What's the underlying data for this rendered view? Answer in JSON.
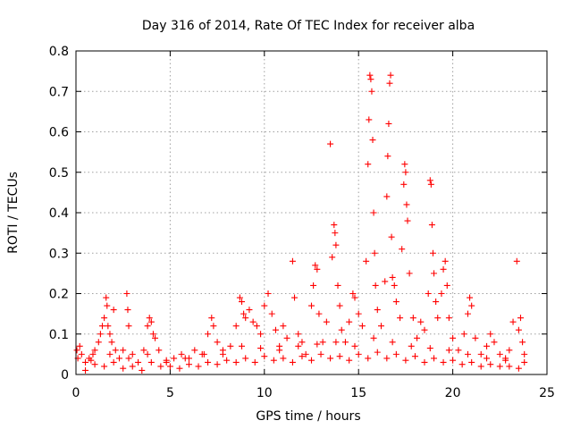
{
  "chart_data": {
    "type": "scatter",
    "title": "Day 316 of 2014, Rate Of TEC Index for receiver alba",
    "xlabel": "GPS time / hours",
    "ylabel": "ROTI / TECUs",
    "xlim": [
      0,
      25
    ],
    "ylim": [
      0,
      0.8
    ],
    "xticks": [
      "0",
      "5",
      "10",
      "15",
      "20",
      "25"
    ],
    "yticks": [
      "0",
      "0.1",
      "0.2",
      "0.3",
      "0.4",
      "0.5",
      "0.6",
      "0.7",
      "0.8"
    ],
    "grid": true,
    "marker": "plus",
    "color": "#ff0000",
    "series": [
      {
        "name": "ROTI",
        "points": [
          [
            0.05,
            0.06
          ],
          [
            0.1,
            0.04
          ],
          [
            0.2,
            0.07
          ],
          [
            0.3,
            0.05
          ],
          [
            0.5,
            0.03
          ],
          [
            0.7,
            0.04
          ],
          [
            0.9,
            0.05
          ],
          [
            1.0,
            0.06
          ],
          [
            1.2,
            0.08
          ],
          [
            1.3,
            0.1
          ],
          [
            1.4,
            0.12
          ],
          [
            1.5,
            0.14
          ],
          [
            1.6,
            0.19
          ],
          [
            1.65,
            0.17
          ],
          [
            1.7,
            0.12
          ],
          [
            1.8,
            0.1
          ],
          [
            1.9,
            0.08
          ],
          [
            2.0,
            0.16
          ],
          [
            2.1,
            0.06
          ],
          [
            2.3,
            0.04
          ],
          [
            2.5,
            0.06
          ],
          [
            2.7,
            0.2
          ],
          [
            2.75,
            0.16
          ],
          [
            2.8,
            0.12
          ],
          [
            3.0,
            0.05
          ],
          [
            3.3,
            0.03
          ],
          [
            3.6,
            0.06
          ],
          [
            3.8,
            0.12
          ],
          [
            3.9,
            0.14
          ],
          [
            4.0,
            0.13
          ],
          [
            4.1,
            0.1
          ],
          [
            4.2,
            0.09
          ],
          [
            4.4,
            0.06
          ],
          [
            4.8,
            0.03
          ],
          [
            5.2,
            0.04
          ],
          [
            5.6,
            0.05
          ],
          [
            6.0,
            0.04
          ],
          [
            6.3,
            0.06
          ],
          [
            6.7,
            0.05
          ],
          [
            7.0,
            0.1
          ],
          [
            7.2,
            0.14
          ],
          [
            7.3,
            0.12
          ],
          [
            7.5,
            0.08
          ],
          [
            7.8,
            0.05
          ],
          [
            8.2,
            0.07
          ],
          [
            8.5,
            0.12
          ],
          [
            8.7,
            0.19
          ],
          [
            8.8,
            0.18
          ],
          [
            8.9,
            0.15
          ],
          [
            9.0,
            0.14
          ],
          [
            9.2,
            0.16
          ],
          [
            9.4,
            0.13
          ],
          [
            9.6,
            0.12
          ],
          [
            9.8,
            0.1
          ],
          [
            10.0,
            0.17
          ],
          [
            10.2,
            0.2
          ],
          [
            10.4,
            0.15
          ],
          [
            10.6,
            0.11
          ],
          [
            10.8,
            0.07
          ],
          [
            11.0,
            0.12
          ],
          [
            11.2,
            0.09
          ],
          [
            11.5,
            0.28
          ],
          [
            11.6,
            0.19
          ],
          [
            11.8,
            0.1
          ],
          [
            12.0,
            0.08
          ],
          [
            12.2,
            0.05
          ],
          [
            12.5,
            0.17
          ],
          [
            12.6,
            0.22
          ],
          [
            12.7,
            0.27
          ],
          [
            12.8,
            0.26
          ],
          [
            12.9,
            0.15
          ],
          [
            13.1,
            0.08
          ],
          [
            13.3,
            0.13
          ],
          [
            13.5,
            0.57
          ],
          [
            13.6,
            0.29
          ],
          [
            13.7,
            0.37
          ],
          [
            13.75,
            0.35
          ],
          [
            13.8,
            0.32
          ],
          [
            13.9,
            0.22
          ],
          [
            14.0,
            0.17
          ],
          [
            14.1,
            0.11
          ],
          [
            14.3,
            0.08
          ],
          [
            14.5,
            0.13
          ],
          [
            14.7,
            0.2
          ],
          [
            14.8,
            0.19
          ],
          [
            15.0,
            0.15
          ],
          [
            15.2,
            0.12
          ],
          [
            15.4,
            0.28
          ],
          [
            15.5,
            0.52
          ],
          [
            15.55,
            0.63
          ],
          [
            15.6,
            0.74
          ],
          [
            15.65,
            0.73
          ],
          [
            15.7,
            0.7
          ],
          [
            15.75,
            0.58
          ],
          [
            15.8,
            0.4
          ],
          [
            15.85,
            0.3
          ],
          [
            15.9,
            0.22
          ],
          [
            16.0,
            0.16
          ],
          [
            16.2,
            0.12
          ],
          [
            16.4,
            0.23
          ],
          [
            16.5,
            0.44
          ],
          [
            16.55,
            0.54
          ],
          [
            16.6,
            0.62
          ],
          [
            16.65,
            0.72
          ],
          [
            16.7,
            0.74
          ],
          [
            16.75,
            0.34
          ],
          [
            16.8,
            0.24
          ],
          [
            16.9,
            0.22
          ],
          [
            17.0,
            0.18
          ],
          [
            17.2,
            0.14
          ],
          [
            17.3,
            0.31
          ],
          [
            17.4,
            0.47
          ],
          [
            17.45,
            0.52
          ],
          [
            17.5,
            0.5
          ],
          [
            17.55,
            0.42
          ],
          [
            17.6,
            0.38
          ],
          [
            17.7,
            0.25
          ],
          [
            17.9,
            0.14
          ],
          [
            18.1,
            0.09
          ],
          [
            18.3,
            0.13
          ],
          [
            18.5,
            0.11
          ],
          [
            18.7,
            0.2
          ],
          [
            18.8,
            0.48
          ],
          [
            18.85,
            0.47
          ],
          [
            18.9,
            0.37
          ],
          [
            18.95,
            0.3
          ],
          [
            19.0,
            0.25
          ],
          [
            19.1,
            0.18
          ],
          [
            19.2,
            0.14
          ],
          [
            19.4,
            0.2
          ],
          [
            19.5,
            0.26
          ],
          [
            19.6,
            0.28
          ],
          [
            19.7,
            0.22
          ],
          [
            19.8,
            0.14
          ],
          [
            20.0,
            0.09
          ],
          [
            20.3,
            0.06
          ],
          [
            20.6,
            0.1
          ],
          [
            20.8,
            0.15
          ],
          [
            20.9,
            0.19
          ],
          [
            21.0,
            0.17
          ],
          [
            21.2,
            0.09
          ],
          [
            21.5,
            0.05
          ],
          [
            21.8,
            0.07
          ],
          [
            22.0,
            0.1
          ],
          [
            22.2,
            0.08
          ],
          [
            22.5,
            0.05
          ],
          [
            22.8,
            0.04
          ],
          [
            23.0,
            0.06
          ],
          [
            23.2,
            0.13
          ],
          [
            23.4,
            0.28
          ],
          [
            23.5,
            0.11
          ],
          [
            23.6,
            0.14
          ],
          [
            23.7,
            0.08
          ],
          [
            23.8,
            0.05
          ],
          [
            0.5,
            0.01
          ],
          [
            1.5,
            0.02
          ],
          [
            2.5,
            0.015
          ],
          [
            3.5,
            0.01
          ],
          [
            4.5,
            0.02
          ],
          [
            5.5,
            0.015
          ],
          [
            6.5,
            0.02
          ],
          [
            7.5,
            0.025
          ],
          [
            8.5,
            0.03
          ],
          [
            9.5,
            0.03
          ],
          [
            10.5,
            0.035
          ],
          [
            11.5,
            0.03
          ],
          [
            12.5,
            0.035
          ],
          [
            13.5,
            0.04
          ],
          [
            14.5,
            0.035
          ],
          [
            15.5,
            0.04
          ],
          [
            16.5,
            0.04
          ],
          [
            17.5,
            0.035
          ],
          [
            18.5,
            0.03
          ],
          [
            19.5,
            0.03
          ],
          [
            20.5,
            0.025
          ],
          [
            21.5,
            0.02
          ],
          [
            22.5,
            0.02
          ],
          [
            23.5,
            0.015
          ],
          [
            1.0,
            0.025
          ],
          [
            2.0,
            0.03
          ],
          [
            3.0,
            0.02
          ],
          [
            4.0,
            0.03
          ],
          [
            5.0,
            0.02
          ],
          [
            6.0,
            0.025
          ],
          [
            7.0,
            0.03
          ],
          [
            8.0,
            0.035
          ],
          [
            9.0,
            0.04
          ],
          [
            10.0,
            0.045
          ],
          [
            11.0,
            0.04
          ],
          [
            12.0,
            0.045
          ],
          [
            13.0,
            0.05
          ],
          [
            14.0,
            0.045
          ],
          [
            15.0,
            0.05
          ],
          [
            16.0,
            0.055
          ],
          [
            17.0,
            0.05
          ],
          [
            18.0,
            0.045
          ],
          [
            19.0,
            0.04
          ],
          [
            20.0,
            0.035
          ],
          [
            21.0,
            0.03
          ],
          [
            22.0,
            0.025
          ],
          [
            23.0,
            0.02
          ],
          [
            0.8,
            0.035
          ],
          [
            1.8,
            0.05
          ],
          [
            2.8,
            0.04
          ],
          [
            3.8,
            0.05
          ],
          [
            4.8,
            0.035
          ],
          [
            5.8,
            0.04
          ],
          [
            6.8,
            0.05
          ],
          [
            7.8,
            0.06
          ],
          [
            8.8,
            0.07
          ],
          [
            9.8,
            0.065
          ],
          [
            10.8,
            0.06
          ],
          [
            11.8,
            0.07
          ],
          [
            12.8,
            0.075
          ],
          [
            13.8,
            0.08
          ],
          [
            14.8,
            0.07
          ],
          [
            15.8,
            0.09
          ],
          [
            16.8,
            0.08
          ],
          [
            17.8,
            0.07
          ],
          [
            18.8,
            0.065
          ],
          [
            19.8,
            0.06
          ],
          [
            20.8,
            0.05
          ],
          [
            21.8,
            0.04
          ],
          [
            22.8,
            0.035
          ],
          [
            23.8,
            0.03
          ]
        ]
      }
    ]
  }
}
